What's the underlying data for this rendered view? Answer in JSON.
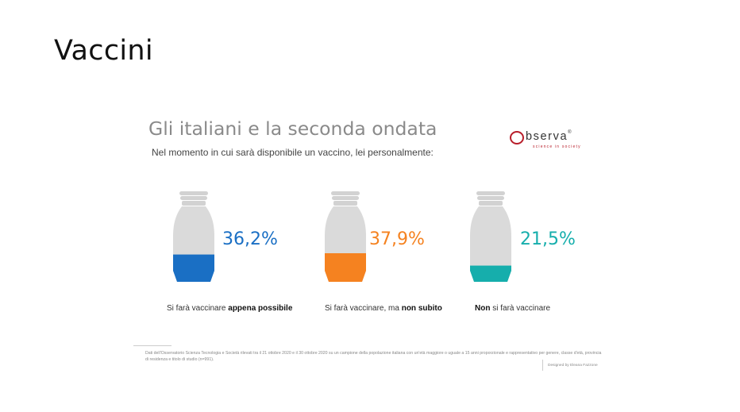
{
  "slide": {
    "title": "Vaccini"
  },
  "card": {
    "headline": "Gli italiani e la seconda ondata",
    "subline": "Nel momento in cui sarà disponibile un vaccino, lei personalmente:",
    "logo": {
      "word": "bserva",
      "registered": "®",
      "tagline": "science in society"
    },
    "captions": [
      {
        "pre": "Si farà vaccinare ",
        "bold": "appena possibile",
        "post": ""
      },
      {
        "pre": "Si farà vaccinare, ma ",
        "bold": "non subito",
        "post": ""
      },
      {
        "pre": "",
        "bold": "Non",
        "post": " si farà vaccinare"
      }
    ],
    "footnote": "Dati dell'Osservatorio Scienza Tecnologia e Società rilevati tra il 21 ottobre 2020 e il 30 ottobre 2020 su un campione della popolazione italiana con un'età maggiore o uguale a 15 anni proporzionale e rappresentativo per genere, classe d'età, provincia di residenza e titolo di studio (n=991).",
    "credit": "Designed by Eleana Fazzone"
  },
  "colors": {
    "blue": "#1a6fc4",
    "orange": "#f58220",
    "teal": "#16aeac",
    "bottle_body": "#dadada",
    "bottle_cap": "#d2d2d2"
  },
  "chart_data": {
    "type": "bar",
    "categories": [
      "Si farà vaccinare appena possibile",
      "Si farà vaccinare, ma non subito",
      "Non si farà vaccinare"
    ],
    "values": [
      36.2,
      37.9,
      21.5
    ],
    "value_labels": [
      "36,2%",
      "37,9%",
      "21,5%"
    ],
    "colors": [
      "#1a6fc4",
      "#f58220",
      "#16aeac"
    ],
    "ylim": [
      0,
      100
    ]
  }
}
